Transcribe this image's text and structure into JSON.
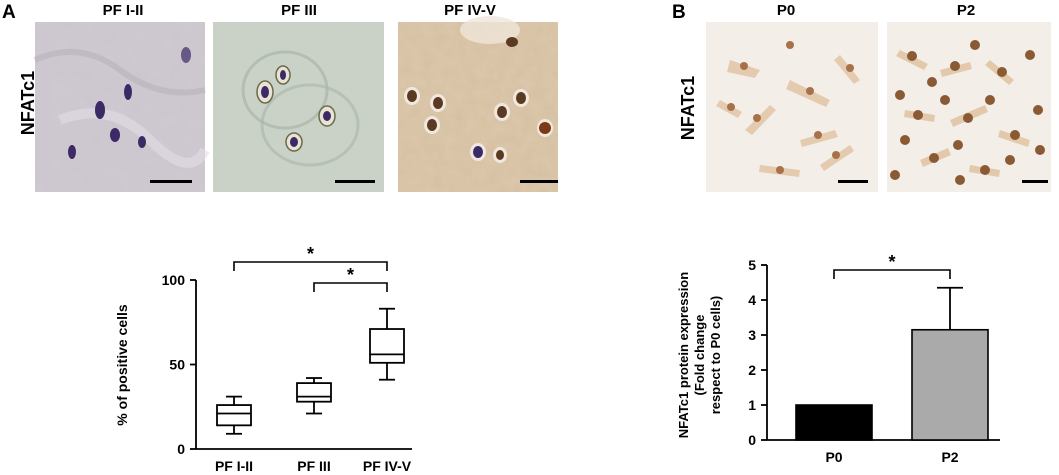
{
  "panel_a": {
    "letter": "A",
    "row_label": "NFATc1",
    "micrographs": [
      {
        "label": "PF I-II"
      },
      {
        "label": "PF III"
      },
      {
        "label": "PF IV-V"
      }
    ],
    "colors": {
      "tissue_a": "#c9c4cc",
      "tissue_b": "#c8d0c6",
      "tissue_c": "#d8c2a6",
      "nucleus_blue": "#3c2a66",
      "nucleus_brown": "#5a3a20"
    }
  },
  "panel_b": {
    "letter": "B",
    "row_label": "NFATc1",
    "micrographs": [
      {
        "label": "P0"
      },
      {
        "label": "P2"
      }
    ],
    "colors": {
      "background": "#f3eee8",
      "cell": "#d9b08a",
      "nucleus": "#8a5a35"
    }
  },
  "chart_data": [
    {
      "type": "box",
      "title": "",
      "xlabel": "",
      "ylabel": "% of positive cells",
      "categories": [
        "PF I-II",
        "PF III",
        "PF IV-V"
      ],
      "ylim": [
        0,
        100
      ],
      "yticks": [
        "0",
        "50",
        "100"
      ],
      "boxes": [
        {
          "min": 9,
          "q1": 14,
          "median": 21,
          "q3": 26,
          "max": 31
        },
        {
          "min": 21,
          "q1": 28,
          "median": 31,
          "q3": 39,
          "max": 42
        },
        {
          "min": 41,
          "q1": 51,
          "median": 56,
          "q3": 71,
          "max": 83
        }
      ],
      "significance": [
        {
          "from": 0,
          "to": 2,
          "label": "*"
        },
        {
          "from": 1,
          "to": 2,
          "label": "*"
        }
      ]
    },
    {
      "type": "bar",
      "title": "",
      "xlabel": "",
      "ylabel": "NFATc1 protein expression",
      "ylabel_line2": "(Fold change",
      "ylabel_line3": "respect to P0 cells)",
      "categories": [
        "P0",
        "P2"
      ],
      "values": [
        1.0,
        3.15
      ],
      "error_upper": [
        0,
        1.2
      ],
      "ylim": [
        0,
        5
      ],
      "yticks": [
        "0",
        "1",
        "2",
        "3",
        "4",
        "5"
      ],
      "colors": [
        "#000000",
        "#aaaaaa"
      ],
      "significance": [
        {
          "from": 0,
          "to": 1,
          "label": "*"
        }
      ]
    }
  ]
}
